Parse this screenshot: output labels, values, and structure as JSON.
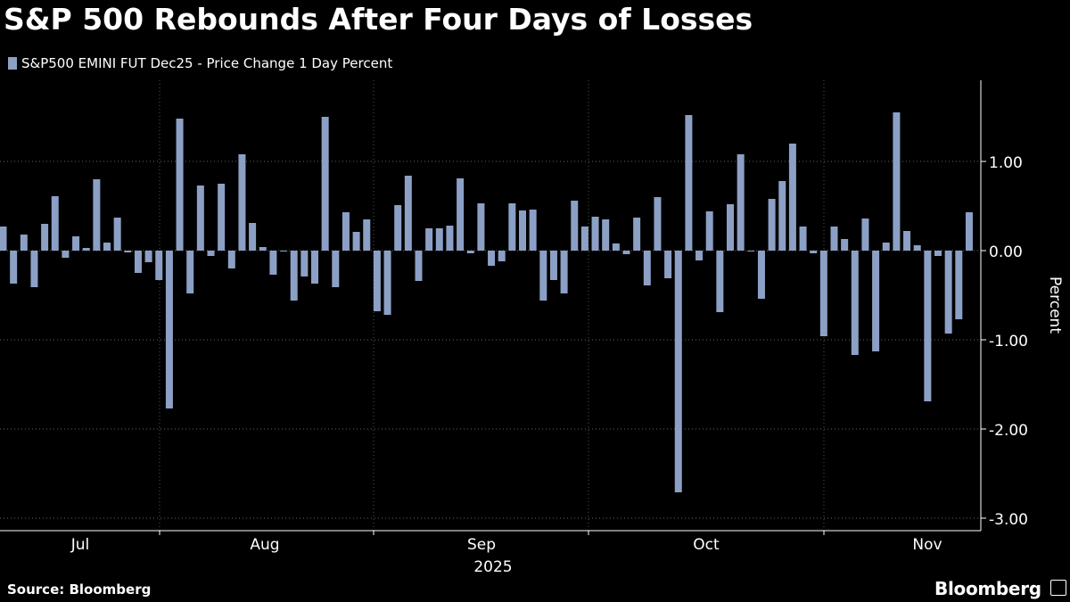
{
  "chart_data": {
    "type": "bar",
    "title": "S&P 500 Rebounds After Four Days of Losses",
    "series_name": "S&P500 EMINI FUT  Dec25 - Price Change 1 Day Percent",
    "ylabel": "Percent",
    "xlabel": "2025",
    "ylim": [
      -3.0,
      1.9
    ],
    "yticks": [
      -3.0,
      -2.0,
      -1.0,
      0.0,
      1.0
    ],
    "ytick_labels": [
      "-3.00",
      "-2.00",
      "-1.00",
      "0.00",
      "1.00"
    ],
    "month_labels": [
      "Jul",
      "Aug",
      "Sep",
      "Oct",
      "Nov"
    ],
    "year_label": "2025",
    "bar_color": "#8ca0c6",
    "values": [
      0.27,
      -0.37,
      0.18,
      -0.41,
      0.3,
      0.61,
      -0.08,
      0.16,
      0.03,
      0.8,
      0.09,
      0.37,
      -0.02,
      -0.25,
      -0.13,
      -0.33,
      -1.77,
      1.48,
      -0.48,
      0.73,
      -0.06,
      0.75,
      -0.2,
      1.08,
      0.31,
      0.04,
      -0.27,
      -0.01,
      -0.56,
      -0.29,
      -0.37,
      1.5,
      -0.41,
      0.43,
      0.21,
      0.35,
      -0.68,
      -0.72,
      0.51,
      0.84,
      -0.34,
      0.25,
      0.25,
      0.28,
      0.81,
      -0.03,
      0.53,
      -0.17,
      -0.12,
      0.53,
      0.45,
      0.46,
      -0.56,
      -0.33,
      -0.48,
      0.56,
      0.27,
      0.38,
      0.35,
      0.08,
      -0.04,
      0.37,
      -0.39,
      0.6,
      -0.31,
      -2.71,
      1.52,
      -0.11,
      0.44,
      -0.69,
      0.52,
      1.08,
      -0.01,
      -0.54,
      0.58,
      0.78,
      1.2,
      0.27,
      -0.03,
      -0.96,
      0.27,
      0.13,
      -1.17,
      0.36,
      -1.13,
      0.09,
      1.55,
      0.22,
      0.06,
      -1.69,
      -0.06,
      -0.93,
      -0.77,
      0.43
    ]
  },
  "footer": {
    "source": "Source: Bloomberg",
    "brand": "Bloomberg"
  }
}
